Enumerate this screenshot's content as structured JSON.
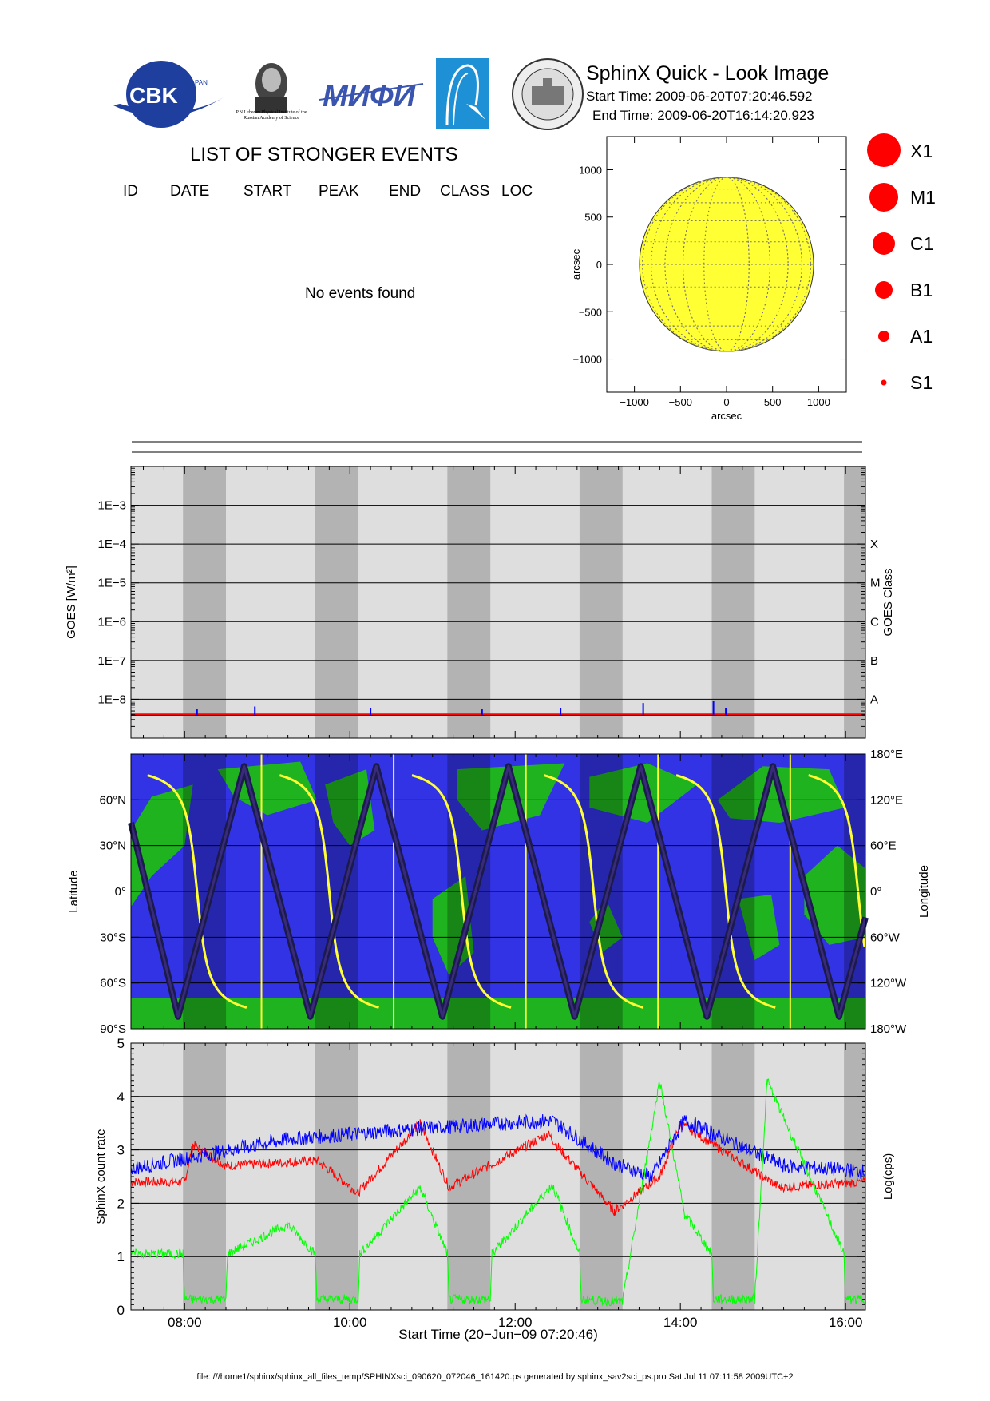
{
  "header": {
    "title": "SphinX Quick - Look Image",
    "start_time": "Start Time: 2009-06-20T07:20:46.592",
    "end_time": "End Time: 2009-06-20T16:14:20.923",
    "logos": [
      {
        "name": "cbk-pan-logo",
        "text": "CBK",
        "subtext": "PAN"
      },
      {
        "name": "lebedev-institute-logo",
        "text": "P.N.Lebedev Physical Institute of the Russian Academy of Science"
      },
      {
        "name": "mifi-logo",
        "text": "MИФИ"
      },
      {
        "name": "izmiran-logo",
        "text": ""
      },
      {
        "name": "wroclaw-university-seal",
        "text": ""
      }
    ]
  },
  "events": {
    "title": "LIST OF STRONGER EVENTS",
    "columns": [
      "ID",
      "DATE",
      "START",
      "PEAK",
      "END",
      "CLASS",
      "LOC"
    ],
    "empty_message": "No events found"
  },
  "legend_classes": [
    "X1",
    "M1",
    "C1",
    "B1",
    "A1",
    "S1"
  ],
  "colors": {
    "sun": "#ffff33",
    "flare_marker": "#ff0000",
    "plot_bg_light": "#dedede",
    "plot_bg_dark": "#b3b3b3",
    "ocean": "#3333e6",
    "land": "#1fb31f",
    "track": "#1a1a4d",
    "terminator": "#ffff33",
    "rate_red": "#ff0000",
    "rate_blue": "#0000ff",
    "rate_green": "#00ff00"
  },
  "chart_data": [
    {
      "type": "scatter",
      "name": "solar-disk",
      "xlabel": "arcsec",
      "ylabel": "arcsec",
      "xlim": [
        -1300,
        1300
      ],
      "ylim": [
        -1350,
        1350
      ],
      "xticks": [
        -1000,
        -500,
        0,
        500,
        1000
      ],
      "yticks": [
        -1000,
        -500,
        0,
        500,
        1000
      ],
      "xtick_labels": [
        "−1000",
        "−500",
        "0",
        "500",
        "1000"
      ],
      "ytick_labels": [
        "−1000",
        "−500",
        "0",
        "500",
        "1000"
      ],
      "solar_radius_arcsec": 945,
      "grid": true
    },
    {
      "type": "line",
      "name": "goes-flux",
      "ylabel": "GOES [W/m²]",
      "y2label": "GOES Class",
      "yscale": "log",
      "ylim": [
        1e-09,
        0.01
      ],
      "ytick_labels": [
        "1E−3",
        "1E−4",
        "1E−5",
        "1E−6",
        "1E−7",
        "1E−8"
      ],
      "ytick_values": [
        0.001,
        0.0001,
        1e-05,
        1e-06,
        1e-07,
        1e-08
      ],
      "class_labels": [
        "X",
        "M",
        "C",
        "B",
        "A"
      ],
      "class_values": [
        0.0001,
        1e-05,
        1e-06,
        1e-07,
        1e-08
      ],
      "series": [
        {
          "name": "",
          "color": "#ff0000",
          "level": 4e-09
        },
        {
          "name": "",
          "color": "#0000ff",
          "level": 4e-09,
          "spikes": [
            [
              8.15,
              5.5e-09
            ],
            [
              8.85,
              6.5e-09
            ],
            [
              10.25,
              6e-09
            ],
            [
              11.6,
              5.5e-09
            ],
            [
              12.55,
              6e-09
            ],
            [
              13.55,
              8e-09
            ],
            [
              14.4,
              9e-09
            ],
            [
              14.55,
              6e-09
            ]
          ]
        }
      ]
    },
    {
      "type": "line",
      "name": "orbit-track",
      "ylabel": "Latitude",
      "y2label": "Longitude",
      "ylim": [
        -90,
        90
      ],
      "ytick_labels": [
        "60°N",
        "30°N",
        "0°",
        "30°S",
        "60°S",
        "90°S"
      ],
      "ytick_values": [
        60,
        30,
        0,
        -30,
        -60,
        -90
      ],
      "y2tick_labels": [
        "180°E",
        "120°E",
        "60°E",
        "0°",
        "60°W",
        "120°W",
        "180°W"
      ],
      "y2tick_values": [
        180,
        120,
        60,
        0,
        -60,
        -120,
        -180
      ],
      "track_latitude_points": [
        [
          7.35,
          45
        ],
        [
          7.92,
          -82
        ],
        [
          8.72,
          82
        ],
        [
          9.52,
          -82
        ],
        [
          10.32,
          82
        ],
        [
          11.12,
          -82
        ],
        [
          11.92,
          82
        ],
        [
          12.72,
          -82
        ],
        [
          13.52,
          82
        ],
        [
          14.32,
          -82
        ],
        [
          15.12,
          82
        ],
        [
          15.92,
          -82
        ],
        [
          16.24,
          -17
        ]
      ]
    },
    {
      "type": "line",
      "name": "sphinx-count-rate",
      "xlabel": "Start Time (20−Jun−09 07:20:46)",
      "ylabel": "SphinX count rate",
      "y2label": "Log(cps)",
      "xlim": [
        7.35,
        16.24
      ],
      "ylim": [
        0,
        5
      ],
      "xticks": [
        8,
        10,
        12,
        14,
        16
      ],
      "xtick_labels": [
        "08:00",
        "10:00",
        "12:00",
        "14:00",
        "16:00"
      ],
      "yticks": [
        0,
        1,
        2,
        3,
        4,
        5
      ],
      "ytick_labels": [
        "0",
        "1",
        "2",
        "3",
        "4",
        "5"
      ],
      "night_intervals": [
        [
          7.98,
          8.5
        ],
        [
          9.58,
          10.1
        ],
        [
          11.18,
          11.7
        ],
        [
          12.78,
          13.3
        ],
        [
          14.38,
          14.9
        ],
        [
          15.98,
          16.24
        ]
      ],
      "series": [
        {
          "name": "",
          "color": "#ff0000",
          "baseline": 2.4,
          "points": [
            [
              7.35,
              2.4
            ],
            [
              8.0,
              2.4
            ],
            [
              8.1,
              3.1
            ],
            [
              8.5,
              2.7
            ],
            [
              9.6,
              2.8
            ],
            [
              10.1,
              2.2
            ],
            [
              10.85,
              3.5
            ],
            [
              11.2,
              2.3
            ],
            [
              12.4,
              3.3
            ],
            [
              12.55,
              3.0
            ],
            [
              13.2,
              1.85
            ],
            [
              13.75,
              2.5
            ],
            [
              14.0,
              3.5
            ],
            [
              15.2,
              2.3
            ],
            [
              16.24,
              2.4
            ]
          ]
        },
        {
          "name": "",
          "color": "#0000ff",
          "baseline": 2.65,
          "points": [
            [
              7.35,
              2.65
            ],
            [
              9.25,
              3.2
            ],
            [
              10.85,
              3.4
            ],
            [
              12.45,
              3.55
            ],
            [
              13.2,
              2.75
            ],
            [
              13.65,
              2.5
            ],
            [
              14.05,
              3.55
            ],
            [
              15.25,
              2.7
            ],
            [
              16.24,
              2.6
            ]
          ]
        },
        {
          "name": "",
          "color": "#00ff00",
          "baseline": 1.05,
          "points": [
            [
              7.35,
              1.05
            ],
            [
              7.98,
              1.05
            ],
            [
              8.0,
              0.2
            ],
            [
              8.5,
              0.2
            ],
            [
              8.52,
              1.05
            ],
            [
              9.25,
              1.6
            ],
            [
              9.58,
              1.05
            ],
            [
              9.6,
              0.2
            ],
            [
              10.1,
              0.2
            ],
            [
              10.12,
              1.05
            ],
            [
              10.85,
              2.3
            ],
            [
              11.18,
              1.05
            ],
            [
              11.2,
              0.2
            ],
            [
              11.7,
              0.2
            ],
            [
              11.72,
              1.05
            ],
            [
              12.45,
              2.35
            ],
            [
              12.78,
              1.05
            ],
            [
              12.8,
              0.2
            ],
            [
              13.3,
              0.15
            ],
            [
              13.75,
              4.3
            ],
            [
              14.05,
              1.8
            ],
            [
              14.38,
              1.05
            ],
            [
              14.4,
              0.2
            ],
            [
              14.9,
              0.2
            ],
            [
              15.05,
              4.3
            ],
            [
              15.98,
              1.05
            ],
            [
              16.0,
              0.2
            ],
            [
              16.24,
              0.2
            ]
          ]
        }
      ]
    }
  ],
  "footer": "file: ///home1/sphinx/sphinx_all_files_temp/SPHINXsci_090620_072046_161420.ps generated by sphinx_sav2sci_ps.pro Sat Jul 11 07:11:58 2009UTC+2"
}
